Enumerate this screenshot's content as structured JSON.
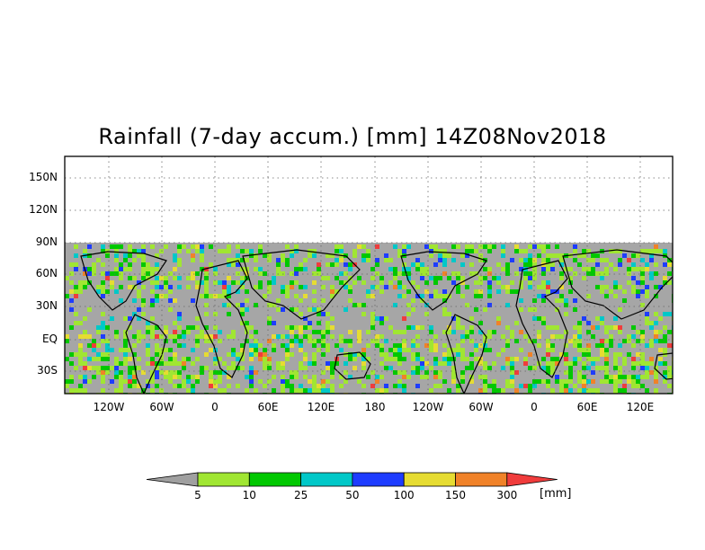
{
  "title": "Rainfall (7-day accum.) [mm] 14Z08Nov2018",
  "map": {
    "lat_labels": [
      "150N",
      "120N",
      "90N",
      "60N",
      "30N",
      "EQ",
      "30S"
    ],
    "lon_labels": [
      "120W",
      "60W",
      "0",
      "60E",
      "120E",
      "180",
      "120W",
      "60W",
      "0",
      "60E",
      "120E"
    ],
    "no_data_color": "#a6a6a6",
    "grid": "dotted",
    "longitude_repeat": "two copies of the globe"
  },
  "colorbar": {
    "unit": "[mm]",
    "boundaries": [
      "5",
      "10",
      "25",
      "50",
      "100",
      "150",
      "300"
    ],
    "colors": [
      "#a0a0a0",
      "#a0e632",
      "#00c800",
      "#00c8c8",
      "#1e3cff",
      "#e6dc32",
      "#f08228",
      "#f03c3c"
    ]
  }
}
